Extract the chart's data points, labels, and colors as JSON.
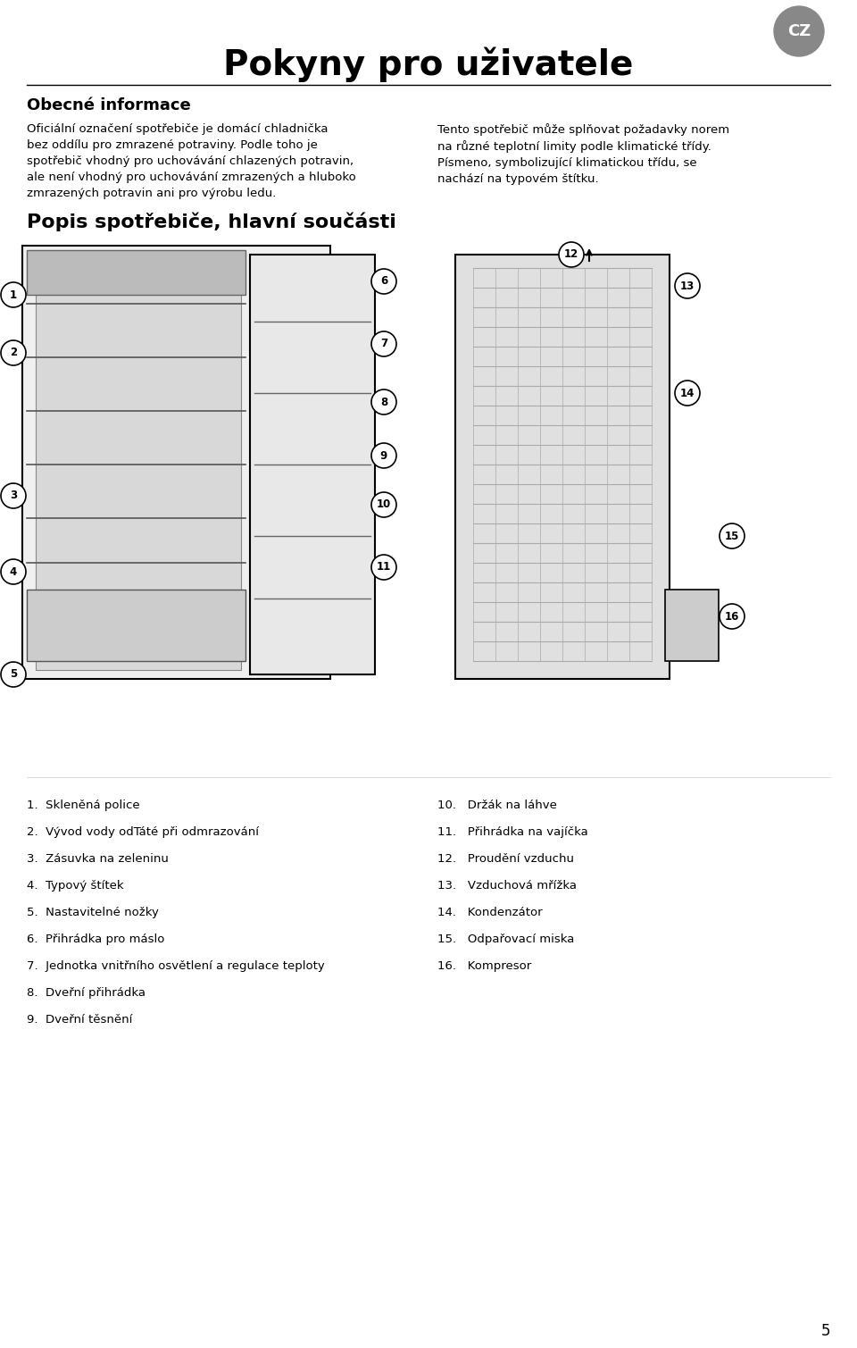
{
  "title": "Pokyny pro uživatele",
  "badge_text": "CZ",
  "section1_heading": "Obecné informace",
  "section1_col1": "Oficiální označení spotřebiče je domácí chladnička\nbez oddílu pro zmrazené potraviny. Podle toho je\nspotřebič vhodný pro uchovávání chlazených potravin,\nale není vhodný pro uchovávání zmrazených a hluboko\nzmrazených potravin ani pro výrobu ledu.",
  "section1_col2": "Tento spotřebič může splňovat požadavky norem\nna různé teplotní limity podle klimatické třídy.\nPísmeno, symbolizující klimatickou třídu, se\nnachází na typovém štítku.",
  "section2_heading": "Popis spotřebiče, hlavní součásti",
  "items_left": [
    "1.  Skleněná police",
    "2.  Vývod vody odTáté při odmrazování",
    "3.  Zásuvka na zeleninu",
    "4.  Typový štítek",
    "5.  Nastavitelné nožky",
    "6.  Přihrádka pro máslo",
    "7.  Jednotka vnitřního osvětlení a regulace teploty",
    "8.  Dveřní přihrádka",
    "9.  Dveřní těsnění"
  ],
  "items_right": [
    "10.   Držák na láhve",
    "11.   Přihrádka na vajíčka",
    "12.   Proudění vzduchu",
    "13.   Vzduchová mřížka",
    "14.   Kondenzátor",
    "15.   Odpařovací miska",
    "16.   Kompresor"
  ],
  "page_number": "5",
  "bg_color": "#ffffff",
  "text_color": "#000000",
  "badge_color": "#888888"
}
